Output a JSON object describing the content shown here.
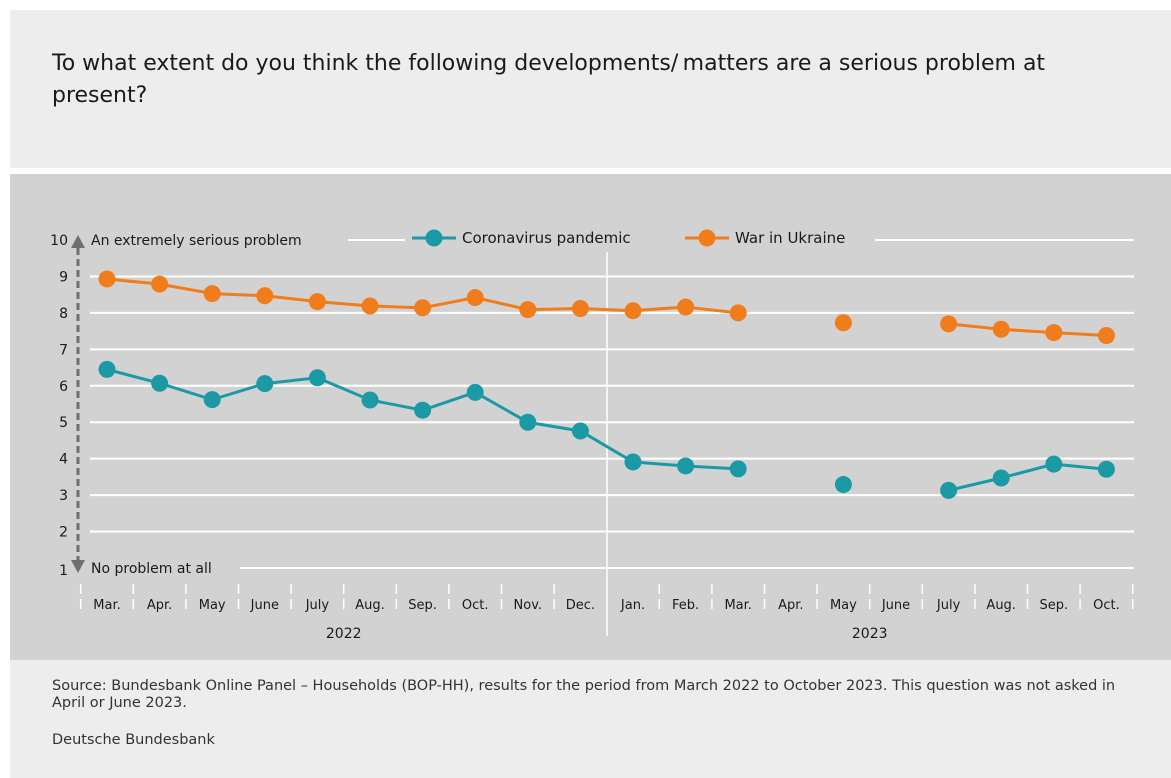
{
  "title": "To what extent do you think the following developments/ matters are a serious problem at present?",
  "source_note": "Source: Bundesbank Online Panel – Households (BOP-HH), results for the period from March 2022 to October 2023. This question was not asked in April or June 2023.",
  "publisher": "Deutsche Bundesbank",
  "colors": {
    "corona": "#1b9aa6",
    "ukraine": "#f07c1b",
    "panel": "#d2d2d2",
    "axis_arrow": "#6f6f6f"
  },
  "chart_data": {
    "type": "line",
    "ylim": [
      1,
      10
    ],
    "yticks": [
      "1",
      "2",
      "3",
      "4",
      "5",
      "6",
      "7",
      "8",
      "9",
      "10"
    ],
    "top_annotation": "An extremely serious problem",
    "bottom_annotation": "No problem at all",
    "categories": [
      "Mar.",
      "Apr.",
      "May",
      "June",
      "July",
      "Aug.",
      "Sep.",
      "Oct.",
      "Nov.",
      "Dec.",
      "Jan.",
      "Feb.",
      "Mar.",
      "Apr.",
      "May",
      "June",
      "July",
      "Aug.",
      "Sep.",
      "Oct."
    ],
    "years": [
      {
        "label": "2022",
        "from": 0,
        "to": 9
      },
      {
        "label": "2023",
        "from": 10,
        "to": 19
      }
    ],
    "series": [
      {
        "name": "Coronavirus pandemic",
        "color": "#1b9aa6",
        "values": [
          6.45,
          6.07,
          5.62,
          6.06,
          6.22,
          5.61,
          5.33,
          5.82,
          5.0,
          4.76,
          3.91,
          3.8,
          3.72,
          null,
          3.29,
          null,
          3.13,
          3.47,
          3.85,
          3.71
        ]
      },
      {
        "name": "War in Ukraine",
        "color": "#f07c1b",
        "values": [
          8.93,
          8.79,
          8.53,
          8.47,
          8.31,
          8.19,
          8.14,
          8.42,
          8.09,
          8.12,
          8.06,
          8.16,
          8.0,
          null,
          7.73,
          null,
          7.7,
          7.55,
          7.46,
          7.38
        ]
      }
    ],
    "legend_position": "top"
  }
}
